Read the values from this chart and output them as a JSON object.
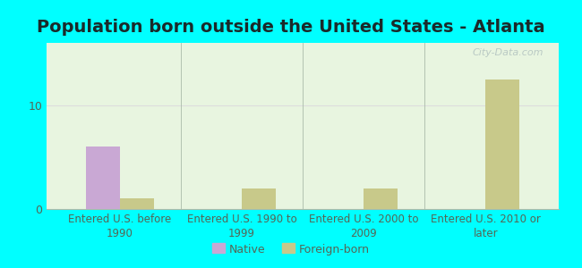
{
  "title": "Population born outside the United States - Atlanta",
  "categories": [
    "Entered U.S. before\n1990",
    "Entered U.S. 1990 to\n1999",
    "Entered U.S. 2000 to\n2009",
    "Entered U.S. 2010 or\nlater"
  ],
  "native_values": [
    6.0,
    0,
    0,
    0
  ],
  "foreign_values": [
    1.0,
    2.0,
    2.0,
    12.5
  ],
  "native_color": "#c9a8d4",
  "foreign_color": "#c8c98a",
  "background_color": "#00ffff",
  "plot_bg_color": "#e8f5e0",
  "ylabel": "",
  "ylim": [
    0,
    16
  ],
  "yticks": [
    0,
    10
  ],
  "watermark": "City-Data.com",
  "legend_native": "Native",
  "legend_foreign": "Foreign-born",
  "title_fontsize": 14,
  "title_color": "#1a2a2a",
  "axis_label_fontsize": 8.5,
  "tick_fontsize": 9,
  "tick_color": "#556655",
  "bar_width": 0.28
}
